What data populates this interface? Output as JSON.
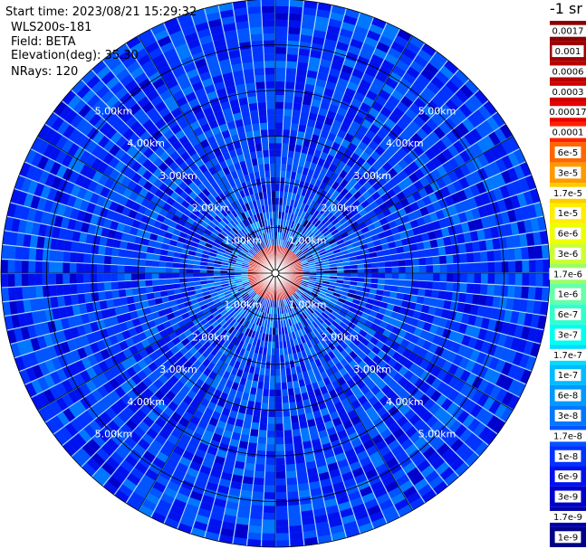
{
  "header": {
    "start_time": "Start time: 2023/08/21 15:29:32",
    "instrument": "WLS200s-181",
    "field": "Field: BETA",
    "elevation": "Elevation(deg): 35.30",
    "nrays": "NRays: 120"
  },
  "colorbar": {
    "title": "-1 sr",
    "labels": [
      "0.0017",
      "0.001",
      "0.0006",
      "0.0003",
      "0.00017",
      "0.0001",
      "6e-5",
      "3e-5",
      "1.7e-5",
      "1e-5",
      "6e-6",
      "3e-6",
      "1.7e-6",
      "1e-6",
      "6e-7",
      "3e-7",
      "1.7e-7",
      "1e-7",
      "6e-8",
      "3e-8",
      "1.7e-8",
      "1e-8",
      "6e-9",
      "3e-9",
      "1.7e-9",
      "1e-9"
    ],
    "colors": [
      "#8b0000",
      "#a00000",
      "#b80000",
      "#d00000",
      "#e80000",
      "#ff2200",
      "#ff6600",
      "#ff9900",
      "#ffcc00",
      "#ffee00",
      "#eeff00",
      "#ccff33",
      "#99ff66",
      "#66ffaa",
      "#33ffcc",
      "#00ffee",
      "#00ddff",
      "#00bbff",
      "#0099ff",
      "#0077ff",
      "#0055ff",
      "#0033ff",
      "#0011ee",
      "#0000cc",
      "#0000aa",
      "#000088"
    ]
  },
  "chart_data": {
    "type": "heatmap",
    "projection": "polar (PPI scan)",
    "field": "BETA",
    "units": "sr^-1",
    "n_rays": 120,
    "range_rings_km": [
      1.0,
      2.0,
      3.0,
      4.0,
      5.0
    ],
    "ring_labels": [
      "1.00km",
      "2.00km",
      "3.00km",
      "4.00km",
      "5.00km"
    ],
    "max_range_km": 6.0,
    "scale": "log",
    "color_range": [
      1e-09,
      0.0017
    ],
    "pattern": {
      "background_log10": -7.9,
      "near_core_log10": -3.3,
      "core_radius_km": 0.3,
      "hot_ring_inner_km": 0.2,
      "hot_ring_outer_km": 0.65,
      "speckle_radius_km": 2.0
    }
  }
}
